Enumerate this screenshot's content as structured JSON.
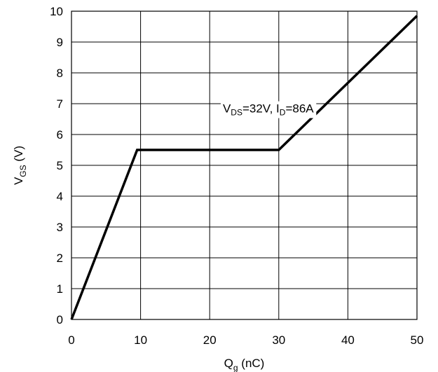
{
  "chart_data": {
    "type": "line",
    "x_label": {
      "main": "Q",
      "sub": "g",
      "suffix": " (nC)"
    },
    "y_label": {
      "main": "V",
      "sub": "GS",
      "suffix": " (V)"
    },
    "xlim": [
      0,
      50
    ],
    "ylim": [
      0,
      10
    ],
    "x_ticks": [
      0,
      10,
      20,
      30,
      40,
      50
    ],
    "y_ticks": [
      0,
      1,
      2,
      3,
      4,
      5,
      6,
      7,
      8,
      9,
      10
    ],
    "grid": true,
    "series": [
      {
        "x": [
          0,
          9.5,
          30,
          50
        ],
        "y": [
          0,
          5.5,
          5.5,
          9.85
        ]
      }
    ],
    "annotation": {
      "parts": [
        {
          "text": "V",
          "sub": false
        },
        {
          "text": "DS",
          "sub": true
        },
        {
          "text": "=32V, I",
          "sub": false
        },
        {
          "text": "D",
          "sub": true
        },
        {
          "text": "=86A",
          "sub": false
        }
      ],
      "x": 30,
      "y": 6.85
    },
    "colors": {
      "line": "#000000",
      "grid": "#000000",
      "background": "#ffffff"
    }
  }
}
